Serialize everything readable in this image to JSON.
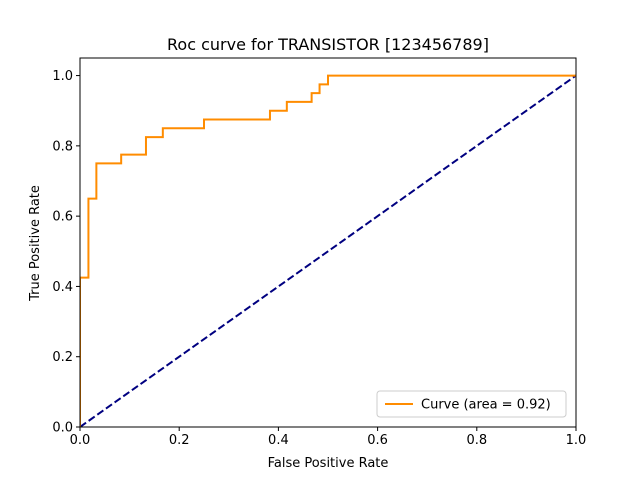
{
  "chart_data": {
    "type": "line",
    "title": "Roc curve for TRANSISTOR [123456789]",
    "xlabel": "False Positive Rate",
    "ylabel": "True Positive Rate",
    "xlim": [
      0.0,
      1.0
    ],
    "ylim": [
      0.0,
      1.05
    ],
    "x_ticks": [
      "0.0",
      "0.2",
      "0.4",
      "0.6",
      "0.8",
      "1.0"
    ],
    "y_ticks": [
      "0.0",
      "0.2",
      "0.4",
      "0.6",
      "0.8",
      "1.0"
    ],
    "grid": false,
    "legend_position": "lower right",
    "series": [
      {
        "name": "Curve (area = 0.92)",
        "color": "#ff8c00",
        "style": "solid",
        "x": [
          0.0,
          0.0,
          0.017,
          0.017,
          0.033,
          0.033,
          0.083,
          0.083,
          0.133,
          0.133,
          0.167,
          0.167,
          0.25,
          0.25,
          0.383,
          0.383,
          0.417,
          0.417,
          0.467,
          0.467,
          0.483,
          0.483,
          0.5,
          0.5,
          1.0
        ],
        "y": [
          0.0,
          0.425,
          0.425,
          0.65,
          0.65,
          0.75,
          0.75,
          0.775,
          0.775,
          0.825,
          0.825,
          0.85,
          0.85,
          0.875,
          0.875,
          0.9,
          0.9,
          0.925,
          0.925,
          0.95,
          0.95,
          0.975,
          0.975,
          1.0,
          1.0
        ]
      },
      {
        "name": "",
        "color": "#000080",
        "style": "dashed",
        "x": [
          0.0,
          1.0
        ],
        "y": [
          0.0,
          1.0
        ]
      }
    ]
  }
}
